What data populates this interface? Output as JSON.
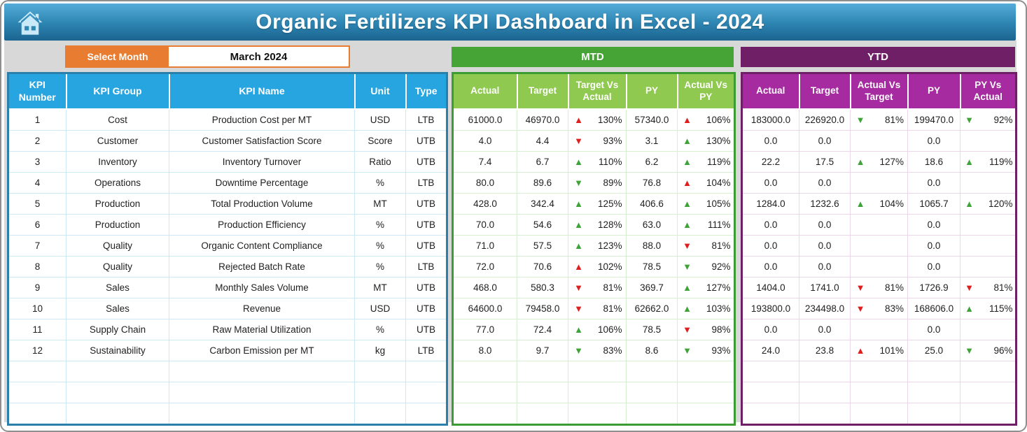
{
  "header": {
    "title": "Organic Fertilizers KPI Dashboard in Excel - 2024"
  },
  "controls": {
    "select_month_label": "Select Month",
    "selected_month": "March 2024"
  },
  "sections": {
    "mtd_label": "MTD",
    "ytd_label": "YTD"
  },
  "table": {
    "info_headers": [
      "KPI Number",
      "KPI Group",
      "KPI Name",
      "Unit",
      "Type"
    ],
    "mtd_headers": [
      "Actual",
      "Target",
      "Target Vs Actual",
      "PY",
      "Actual Vs PY"
    ],
    "ytd_headers": [
      "Actual",
      "Target",
      "Actual Vs Target",
      "PY",
      "PY Vs Actual"
    ],
    "empty_row_count": 3,
    "rows": [
      {
        "number": "1",
        "group": "Cost",
        "name": "Production Cost per MT",
        "unit": "USD",
        "type": "LTB",
        "mtd": {
          "actual": "61000.0",
          "target": "46970.0",
          "target_vs_actual": {
            "arrow": "up",
            "color": "red",
            "value": "130%"
          },
          "py": "57340.0",
          "actual_vs_py": {
            "arrow": "up",
            "color": "red",
            "value": "106%"
          }
        },
        "ytd": {
          "actual": "183000.0",
          "target": "226920.0",
          "actual_vs_target": {
            "arrow": "down",
            "color": "green",
            "value": "81%"
          },
          "py": "199470.0",
          "py_vs_actual": {
            "arrow": "down",
            "color": "green",
            "value": "92%"
          }
        }
      },
      {
        "number": "2",
        "group": "Customer",
        "name": "Customer Satisfaction Score",
        "unit": "Score",
        "type": "UTB",
        "mtd": {
          "actual": "4.0",
          "target": "4.4",
          "target_vs_actual": {
            "arrow": "down",
            "color": "red",
            "value": "93%"
          },
          "py": "3.1",
          "actual_vs_py": {
            "arrow": "up",
            "color": "green",
            "value": "130%"
          }
        },
        "ytd": {
          "actual": "0.0",
          "target": "0.0",
          "actual_vs_target": null,
          "py": "0.0",
          "py_vs_actual": null
        }
      },
      {
        "number": "3",
        "group": "Inventory",
        "name": "Inventory Turnover",
        "unit": "Ratio",
        "type": "UTB",
        "mtd": {
          "actual": "7.4",
          "target": "6.7",
          "target_vs_actual": {
            "arrow": "up",
            "color": "green",
            "value": "110%"
          },
          "py": "6.2",
          "actual_vs_py": {
            "arrow": "up",
            "color": "green",
            "value": "119%"
          }
        },
        "ytd": {
          "actual": "22.2",
          "target": "17.5",
          "actual_vs_target": {
            "arrow": "up",
            "color": "green",
            "value": "127%"
          },
          "py": "18.6",
          "py_vs_actual": {
            "arrow": "up",
            "color": "green",
            "value": "119%"
          }
        }
      },
      {
        "number": "4",
        "group": "Operations",
        "name": "Downtime Percentage",
        "unit": "%",
        "type": "LTB",
        "mtd": {
          "actual": "80.0",
          "target": "89.6",
          "target_vs_actual": {
            "arrow": "down",
            "color": "green",
            "value": "89%"
          },
          "py": "76.8",
          "actual_vs_py": {
            "arrow": "up",
            "color": "red",
            "value": "104%"
          }
        },
        "ytd": {
          "actual": "0.0",
          "target": "0.0",
          "actual_vs_target": null,
          "py": "0.0",
          "py_vs_actual": null
        }
      },
      {
        "number": "5",
        "group": "Production",
        "name": "Total Production Volume",
        "unit": "MT",
        "type": "UTB",
        "mtd": {
          "actual": "428.0",
          "target": "342.4",
          "target_vs_actual": {
            "arrow": "up",
            "color": "green",
            "value": "125%"
          },
          "py": "406.6",
          "actual_vs_py": {
            "arrow": "up",
            "color": "green",
            "value": "105%"
          }
        },
        "ytd": {
          "actual": "1284.0",
          "target": "1232.6",
          "actual_vs_target": {
            "arrow": "up",
            "color": "green",
            "value": "104%"
          },
          "py": "1065.7",
          "py_vs_actual": {
            "arrow": "up",
            "color": "green",
            "value": "120%"
          }
        }
      },
      {
        "number": "6",
        "group": "Production",
        "name": "Production Efficiency",
        "unit": "%",
        "type": "UTB",
        "mtd": {
          "actual": "70.0",
          "target": "54.6",
          "target_vs_actual": {
            "arrow": "up",
            "color": "green",
            "value": "128%"
          },
          "py": "63.0",
          "actual_vs_py": {
            "arrow": "up",
            "color": "green",
            "value": "111%"
          }
        },
        "ytd": {
          "actual": "0.0",
          "target": "0.0",
          "actual_vs_target": null,
          "py": "0.0",
          "py_vs_actual": null
        }
      },
      {
        "number": "7",
        "group": "Quality",
        "name": "Organic Content Compliance",
        "unit": "%",
        "type": "UTB",
        "mtd": {
          "actual": "71.0",
          "target": "57.5",
          "target_vs_actual": {
            "arrow": "up",
            "color": "green",
            "value": "123%"
          },
          "py": "88.0",
          "actual_vs_py": {
            "arrow": "down",
            "color": "red",
            "value": "81%"
          }
        },
        "ytd": {
          "actual": "0.0",
          "target": "0.0",
          "actual_vs_target": null,
          "py": "0.0",
          "py_vs_actual": null
        }
      },
      {
        "number": "8",
        "group": "Quality",
        "name": "Rejected Batch Rate",
        "unit": "%",
        "type": "LTB",
        "mtd": {
          "actual": "72.0",
          "target": "70.6",
          "target_vs_actual": {
            "arrow": "up",
            "color": "red",
            "value": "102%"
          },
          "py": "78.5",
          "actual_vs_py": {
            "arrow": "down",
            "color": "green",
            "value": "92%"
          }
        },
        "ytd": {
          "actual": "0.0",
          "target": "0.0",
          "actual_vs_target": null,
          "py": "0.0",
          "py_vs_actual": null
        }
      },
      {
        "number": "9",
        "group": "Sales",
        "name": "Monthly Sales Volume",
        "unit": "MT",
        "type": "UTB",
        "mtd": {
          "actual": "468.0",
          "target": "580.3",
          "target_vs_actual": {
            "arrow": "down",
            "color": "red",
            "value": "81%"
          },
          "py": "369.7",
          "actual_vs_py": {
            "arrow": "up",
            "color": "green",
            "value": "127%"
          }
        },
        "ytd": {
          "actual": "1404.0",
          "target": "1741.0",
          "actual_vs_target": {
            "arrow": "down",
            "color": "red",
            "value": "81%"
          },
          "py": "1726.9",
          "py_vs_actual": {
            "arrow": "down",
            "color": "red",
            "value": "81%"
          }
        }
      },
      {
        "number": "10",
        "group": "Sales",
        "name": "Revenue",
        "unit": "USD",
        "type": "UTB",
        "mtd": {
          "actual": "64600.0",
          "target": "79458.0",
          "target_vs_actual": {
            "arrow": "down",
            "color": "red",
            "value": "81%"
          },
          "py": "62662.0",
          "actual_vs_py": {
            "arrow": "up",
            "color": "green",
            "value": "103%"
          }
        },
        "ytd": {
          "actual": "193800.0",
          "target": "234498.0",
          "actual_vs_target": {
            "arrow": "down",
            "color": "red",
            "value": "83%"
          },
          "py": "168606.0",
          "py_vs_actual": {
            "arrow": "up",
            "color": "green",
            "value": "115%"
          }
        }
      },
      {
        "number": "11",
        "group": "Supply Chain",
        "name": "Raw Material Utilization",
        "unit": "%",
        "type": "UTB",
        "mtd": {
          "actual": "77.0",
          "target": "72.4",
          "target_vs_actual": {
            "arrow": "up",
            "color": "green",
            "value": "106%"
          },
          "py": "78.5",
          "actual_vs_py": {
            "arrow": "down",
            "color": "red",
            "value": "98%"
          }
        },
        "ytd": {
          "actual": "0.0",
          "target": "0.0",
          "actual_vs_target": null,
          "py": "0.0",
          "py_vs_actual": null
        }
      },
      {
        "number": "12",
        "group": "Sustainability",
        "name": "Carbon Emission per MT",
        "unit": "kg",
        "type": "LTB",
        "mtd": {
          "actual": "8.0",
          "target": "9.7",
          "target_vs_actual": {
            "arrow": "down",
            "color": "green",
            "value": "83%"
          },
          "py": "8.6",
          "actual_vs_py": {
            "arrow": "down",
            "color": "green",
            "value": "93%"
          }
        },
        "ytd": {
          "actual": "24.0",
          "target": "23.8",
          "actual_vs_target": {
            "arrow": "up",
            "color": "red",
            "value": "101%"
          },
          "py": "25.0",
          "py_vs_actual": {
            "arrow": "down",
            "color": "green",
            "value": "96%"
          }
        }
      }
    ]
  },
  "colors": {
    "banner_top": "#55ACD8",
    "banner_mid": "#2E86B3",
    "banner_bottom": "#1B6490",
    "header_blue": "#27A5E1",
    "orange": "#E87D31",
    "mtd_banner_green": "#46A336",
    "mtd_header_green": "#8FC94F",
    "mtd_border_green": "#3D9B33",
    "grid_green": "#D9EFD2",
    "ytd_banner_purple": "#6E1F66",
    "ytd_header_purple": "#A62AA0",
    "ytd_border_purple": "#6E1F66",
    "grid_pink": "#EBD7EA",
    "info_border_blue": "#2B7FAB",
    "grid_blue": "#CDE9F5",
    "red": "#E01E1E",
    "green": "#3FA33A",
    "bg_gray": "#D8D8D8",
    "frame_border": "#8F8F8F",
    "home_icon_blue": "#C9E9F9",
    "text_dark": "#1F1F1F"
  }
}
